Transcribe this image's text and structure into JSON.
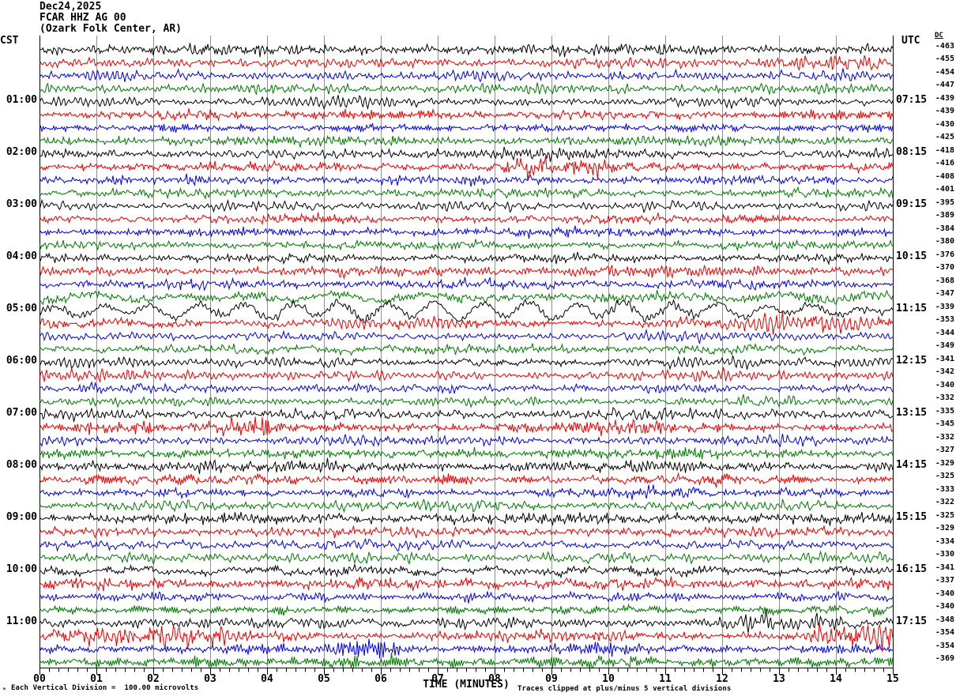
{
  "header": {
    "date": "Dec24,2025",
    "station": "FCAR HHZ AG 00",
    "station_name": "(Ozark Folk Center, AR)",
    "left_tz": "CST",
    "right_tz": "UTC",
    "dc_label": "DC"
  },
  "footer": {
    "scale_glyph": "ₘ",
    "scale_note": "Each Vertical Division =  100.00 microvolts",
    "time_axis_label": "TIME (MINUTES)",
    "clip_note": "Traces clipped at plus/minus 5 vertical divisions"
  },
  "chart_data": {
    "type": "line",
    "title": "FCAR HHZ AG 00 helicorder, Dec24,2025 (Ozark Folk Center, AR)",
    "xlabel": "TIME (MINUTES)",
    "x_range_minutes": [
      0,
      15
    ],
    "x_major_ticks": [
      "00",
      "01",
      "02",
      "03",
      "04",
      "05",
      "06",
      "07",
      "08",
      "09",
      "10",
      "11",
      "12",
      "13",
      "14",
      "15"
    ],
    "x_minor_ticks_per_minute": 6,
    "minutes_per_row": 15,
    "rows_per_hour": 4,
    "grid": "vertical-minute-lines",
    "trace_colors": [
      "#000000",
      "#e60000",
      "#0000dd",
      "#007700"
    ],
    "grid_color": "#909090",
    "clip_divisions": 5,
    "microvolts_per_division": 100.0,
    "rows": [
      {
        "cst": "",
        "utc": "",
        "dc": -463,
        "c": 0,
        "ah": 3.3,
        "al": 0.9,
        "ev": []
      },
      {
        "cst": "",
        "utc": "",
        "dc": -455,
        "c": 1,
        "ah": 3.1,
        "al": 0.9,
        "ev": [
          [
            12.6,
            15,
            1.9
          ]
        ]
      },
      {
        "cst": "",
        "utc": "",
        "dc": -454,
        "c": 2,
        "ah": 3.0,
        "al": 0.9,
        "ev": [
          [
            9.8,
            11.2,
            1.5
          ]
        ]
      },
      {
        "cst": "",
        "utc": "",
        "dc": -447,
        "c": 3,
        "ah": 3.1,
        "al": 0.9,
        "ev": []
      },
      {
        "cst": "01:00",
        "utc": "07:15",
        "dc": -439,
        "c": 0,
        "ah": 3.1,
        "al": 0.9,
        "ev": []
      },
      {
        "cst": "",
        "utc": "",
        "dc": -439,
        "c": 1,
        "ah": 3.1,
        "al": 0.9,
        "ev": []
      },
      {
        "cst": "",
        "utc": "",
        "dc": -430,
        "c": 2,
        "ah": 2.9,
        "al": 0.9,
        "ev": []
      },
      {
        "cst": "",
        "utc": "",
        "dc": -425,
        "c": 3,
        "ah": 3.1,
        "al": 0.9,
        "ev": []
      },
      {
        "cst": "02:00",
        "utc": "08:15",
        "dc": -418,
        "c": 0,
        "ah": 3.3,
        "al": 0.9,
        "ev": []
      },
      {
        "cst": "",
        "utc": "",
        "dc": -416,
        "c": 1,
        "ah": 3.2,
        "al": 0.9,
        "ev": [
          [
            8.1,
            9.9,
            2.2
          ]
        ]
      },
      {
        "cst": "",
        "utc": "",
        "dc": -408,
        "c": 2,
        "ah": 2.9,
        "al": 0.9,
        "ev": []
      },
      {
        "cst": "",
        "utc": "",
        "dc": -401,
        "c": 3,
        "ah": 3.1,
        "al": 0.9,
        "ev": []
      },
      {
        "cst": "03:00",
        "utc": "09:15",
        "dc": -395,
        "c": 0,
        "ah": 3.3,
        "al": 0.9,
        "ev": []
      },
      {
        "cst": "",
        "utc": "",
        "dc": -389,
        "c": 1,
        "ah": 3.1,
        "al": 0.9,
        "ev": []
      },
      {
        "cst": "",
        "utc": "",
        "dc": -384,
        "c": 2,
        "ah": 2.8,
        "al": 0.9,
        "ev": []
      },
      {
        "cst": "",
        "utc": "",
        "dc": -380,
        "c": 3,
        "ah": 3.1,
        "al": 0.9,
        "ev": []
      },
      {
        "cst": "04:00",
        "utc": "10:15",
        "dc": -376,
        "c": 0,
        "ah": 3.3,
        "al": 1.0,
        "ev": []
      },
      {
        "cst": "",
        "utc": "",
        "dc": -370,
        "c": 1,
        "ah": 3.1,
        "al": 0.9,
        "ev": []
      },
      {
        "cst": "",
        "utc": "",
        "dc": -368,
        "c": 2,
        "ah": 2.9,
        "al": 1.4,
        "ev": []
      },
      {
        "cst": "",
        "utc": "",
        "dc": -347,
        "c": 3,
        "ah": 3.4,
        "al": 2.6,
        "ev": []
      },
      {
        "cst": "05:00",
        "utc": "11:15",
        "dc": -339,
        "c": 0,
        "ah": 3.0,
        "al": 7.0,
        "ev": []
      },
      {
        "cst": "",
        "utc": "",
        "dc": -353,
        "c": 1,
        "ah": 3.3,
        "al": 2.0,
        "ev": [
          [
            12.7,
            14.9,
            1.9
          ]
        ]
      },
      {
        "cst": "",
        "utc": "",
        "dc": -344,
        "c": 2,
        "ah": 2.9,
        "al": 1.3,
        "ev": []
      },
      {
        "cst": "",
        "utc": "",
        "dc": -349,
        "c": 3,
        "ah": 3.3,
        "al": 1.5,
        "ev": []
      },
      {
        "cst": "06:00",
        "utc": "12:15",
        "dc": -341,
        "c": 0,
        "ah": 3.4,
        "al": 1.6,
        "ev": []
      },
      {
        "cst": "",
        "utc": "",
        "dc": -342,
        "c": 1,
        "ah": 3.2,
        "al": 0.9,
        "ev": []
      },
      {
        "cst": "",
        "utc": "",
        "dc": -340,
        "c": 2,
        "ah": 2.9,
        "al": 0.9,
        "ev": []
      },
      {
        "cst": "",
        "utc": "",
        "dc": -332,
        "c": 3,
        "ah": 3.2,
        "al": 0.9,
        "ev": []
      },
      {
        "cst": "07:00",
        "utc": "13:15",
        "dc": -335,
        "c": 0,
        "ah": 3.6,
        "al": 1.8,
        "ev": []
      },
      {
        "cst": "",
        "utc": "",
        "dc": -345,
        "c": 1,
        "ah": 3.2,
        "al": 0.9,
        "ev": [
          [
            0.3,
            2.0,
            2.3
          ],
          [
            3.3,
            4.1,
            2.5
          ],
          [
            8.0,
            11.0,
            1.6
          ]
        ]
      },
      {
        "cst": "",
        "utc": "",
        "dc": -332,
        "c": 2,
        "ah": 2.9,
        "al": 0.9,
        "ev": []
      },
      {
        "cst": "",
        "utc": "",
        "dc": -327,
        "c": 3,
        "ah": 3.2,
        "al": 0.9,
        "ev": []
      },
      {
        "cst": "08:00",
        "utc": "14:15",
        "dc": -329,
        "c": 0,
        "ah": 3.4,
        "al": 1.0,
        "ev": []
      },
      {
        "cst": "",
        "utc": "",
        "dc": -325,
        "c": 1,
        "ah": 3.2,
        "al": 0.9,
        "ev": [
          [
            3.0,
            5.0,
            1.5
          ]
        ]
      },
      {
        "cst": "",
        "utc": "",
        "dc": -333,
        "c": 2,
        "ah": 2.9,
        "al": 0.9,
        "ev": [
          [
            10.3,
            11.6,
            2.0
          ]
        ]
      },
      {
        "cst": "",
        "utc": "",
        "dc": -322,
        "c": 3,
        "ah": 3.4,
        "al": 0.9,
        "ev": [
          [
            5.0,
            7.0,
            1.35
          ]
        ]
      },
      {
        "cst": "09:00",
        "utc": "15:15",
        "dc": -325,
        "c": 0,
        "ah": 3.4,
        "al": 1.5,
        "ev": []
      },
      {
        "cst": "",
        "utc": "",
        "dc": -329,
        "c": 1,
        "ah": 3.2,
        "al": 0.9,
        "ev": []
      },
      {
        "cst": "",
        "utc": "",
        "dc": -334,
        "c": 2,
        "ah": 2.9,
        "al": 1.3,
        "ev": []
      },
      {
        "cst": "",
        "utc": "",
        "dc": -330,
        "c": 3,
        "ah": 3.2,
        "al": 0.9,
        "ev": []
      },
      {
        "cst": "10:00",
        "utc": "16:15",
        "dc": -341,
        "c": 0,
        "ah": 3.1,
        "al": 4.5,
        "ev": []
      },
      {
        "cst": "",
        "utc": "",
        "dc": -337,
        "c": 1,
        "ah": 3.2,
        "al": 1.5,
        "ev": []
      },
      {
        "cst": "",
        "utc": "",
        "dc": -340,
        "c": 2,
        "ah": 3.0,
        "al": 1.5,
        "ev": []
      },
      {
        "cst": "",
        "utc": "",
        "dc": -340,
        "c": 3,
        "ah": 3.2,
        "al": 0.9,
        "ev": []
      },
      {
        "cst": "11:00",
        "utc": "17:15",
        "dc": -348,
        "c": 0,
        "ah": 3.4,
        "al": 1.8,
        "ev": [
          [
            12.0,
            14.2,
            1.5
          ]
        ]
      },
      {
        "cst": "",
        "utc": "",
        "dc": -354,
        "c": 1,
        "ah": 3.4,
        "al": 0.9,
        "ev": [
          [
            0.2,
            3.3,
            1.8
          ],
          [
            13.6,
            15,
            2.5
          ]
        ]
      },
      {
        "cst": "",
        "utc": "",
        "dc": -354,
        "c": 2,
        "ah": 3.2,
        "al": 0.9,
        "ev": [
          [
            5.2,
            6.3,
            2.5
          ],
          [
            9.0,
            10.0,
            1.4
          ]
        ]
      },
      {
        "cst": "",
        "utc": "",
        "dc": -369,
        "c": 3,
        "ah": 3.5,
        "al": 1.7,
        "ev": [
          [
            5.0,
            6.6,
            2.1
          ],
          [
            9.6,
            10.7,
            1.9
          ],
          [
            11.6,
            12.5,
            1.6
          ]
        ]
      }
    ]
  }
}
